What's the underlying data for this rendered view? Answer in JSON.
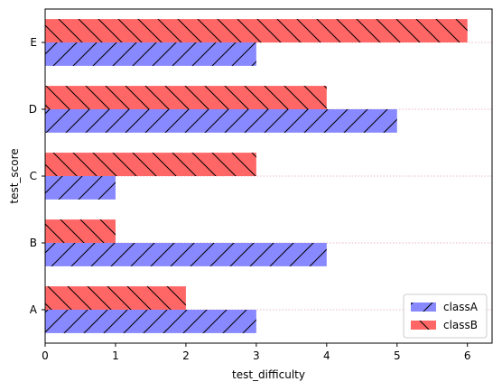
{
  "chart_data": {
    "type": "bar",
    "orientation": "horizontal",
    "categories": [
      "A",
      "B",
      "C",
      "D",
      "E"
    ],
    "series": [
      {
        "name": "classA",
        "values": [
          3,
          4,
          1,
          5,
          3
        ],
        "color": "#8888ff",
        "hatch": "/"
      },
      {
        "name": "classB",
        "values": [
          2,
          1,
          3,
          4,
          6
        ],
        "color": "#ff6666",
        "hatch": "\\"
      }
    ],
    "xlabel": "test_difficulty",
    "ylabel": "test_score",
    "xlim": [
      0,
      6.35
    ],
    "xticks": [
      0,
      1,
      2,
      3,
      4,
      5,
      6
    ],
    "grid": "horizontal dotted",
    "legend_position": "lower-right"
  }
}
